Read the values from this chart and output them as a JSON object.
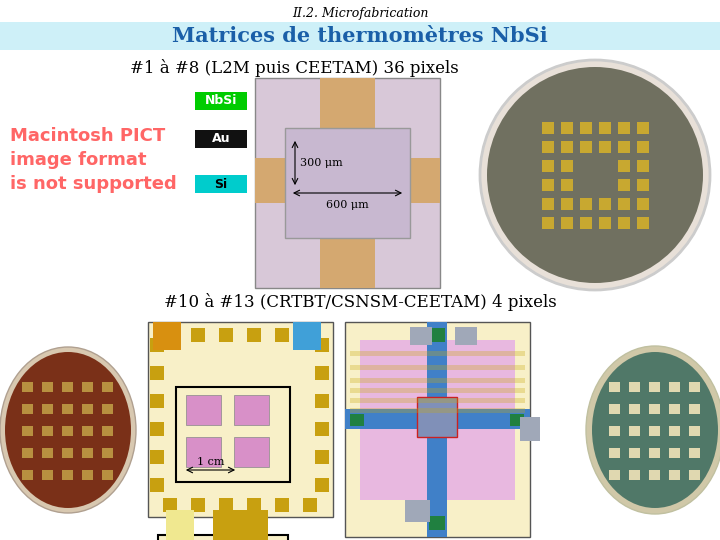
{
  "title_small": "II.2. Microfabrication",
  "title_small_fontsize": 9,
  "title_small_color": "#000000",
  "banner_text": "Matrices de thermomètres NbSi",
  "banner_color": "#cef0f8",
  "banner_text_color": "#1a5fa8",
  "banner_fontsize": 15,
  "section1_text": "#1 à #8 (L2M puis CEETAM) 36 pixels",
  "section1_fontsize": 12,
  "section1_color": "#000000",
  "section2_text": "#10 à #13 (CRTBT/CSNSM-CEETAM) 4 pixels",
  "section2_fontsize": 12,
  "section2_color": "#000000",
  "pict_text": "Macintosh PICT\nimage format\nis not supported",
  "pict_color": "#ff6666",
  "pict_fontsize": 13,
  "nbsi_label": "NbSi",
  "nbsi_color": "#00cc00",
  "au_label": "Au",
  "au_color": "#111111",
  "si_label": "Si",
  "si_color": "#00cccc",
  "label_fontsize": 9,
  "label_text_color": "#ffffff",
  "si_text_color": "#000000",
  "measure1_text": "300 μm",
  "measure2_text": "600 μm",
  "measure_fontsize": 8,
  "scale_text": "1 cm",
  "scale_fontsize": 8,
  "bg_color": "#ffffff"
}
